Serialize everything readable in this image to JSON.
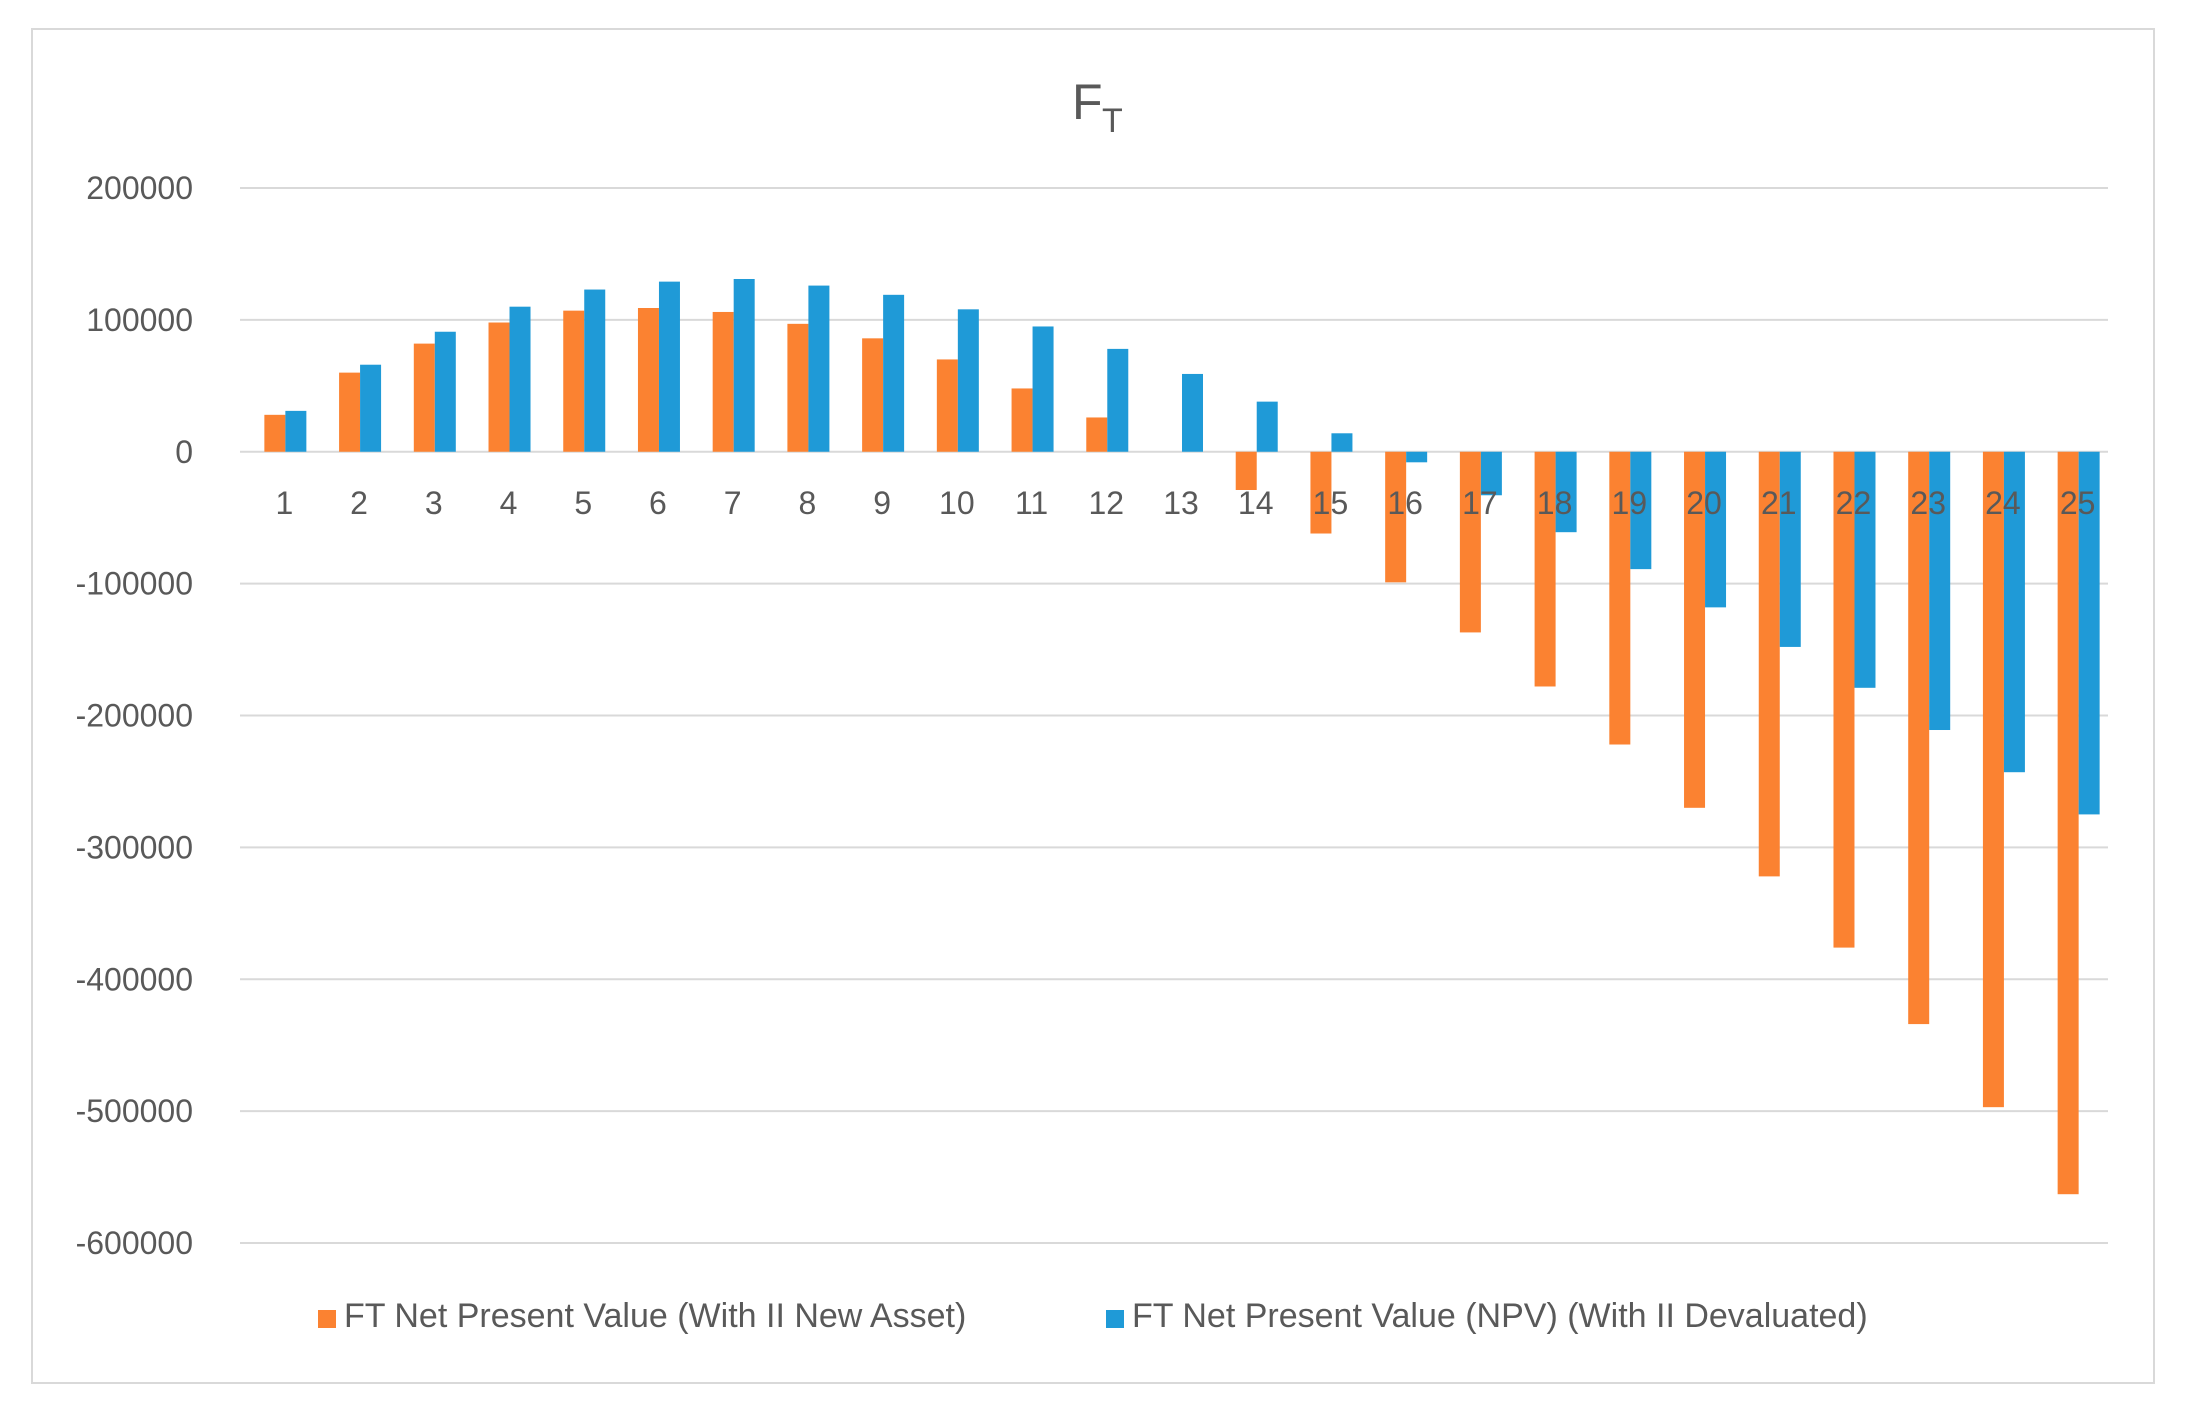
{
  "chart_data": {
    "type": "bar",
    "title_main": "F",
    "title_sub": "T",
    "xlabel": "",
    "ylabel": "",
    "ylim": [
      -600000,
      200000
    ],
    "y_ticks": [
      "200000",
      "100000",
      "0",
      "-100000",
      "-200000",
      "-300000",
      "-400000",
      "-500000",
      "-600000"
    ],
    "y_tick_values": [
      200000,
      100000,
      0,
      -100000,
      -200000,
      -300000,
      -400000,
      -500000,
      -600000
    ],
    "grid": true,
    "legend_position": "bottom",
    "categories": [
      "1",
      "2",
      "3",
      "4",
      "5",
      "6",
      "7",
      "8",
      "9",
      "10",
      "11",
      "12",
      "13",
      "14",
      "15",
      "16",
      "17",
      "18",
      "19",
      "20",
      "21",
      "22",
      "23",
      "24",
      "25"
    ],
    "series": [
      {
        "name": "FT Net Present Value (With II New Asset)",
        "color": "#fb8231",
        "values": [
          28000,
          60000,
          82000,
          98000,
          107000,
          109000,
          106000,
          97000,
          86000,
          70000,
          48000,
          26000,
          0,
          -29000,
          -62000,
          -99000,
          -137000,
          -178000,
          -222000,
          -270000,
          -322000,
          -376000,
          -434000,
          -497000,
          -563000
        ]
      },
      {
        "name": "FT Net Present Value (NPV) (With II Devaluated)",
        "color": "#1f9ad7",
        "values": [
          31000,
          66000,
          91000,
          110000,
          123000,
          129000,
          131000,
          126000,
          119000,
          108000,
          95000,
          78000,
          59000,
          38000,
          14000,
          -8000,
          -33000,
          -61000,
          -89000,
          -118000,
          -148000,
          -179000,
          -211000,
          -243000,
          -275000
        ]
      }
    ]
  },
  "colors": {
    "grid": "#d9d9d9",
    "text": "#595959",
    "border": "#d9d9d9"
  }
}
